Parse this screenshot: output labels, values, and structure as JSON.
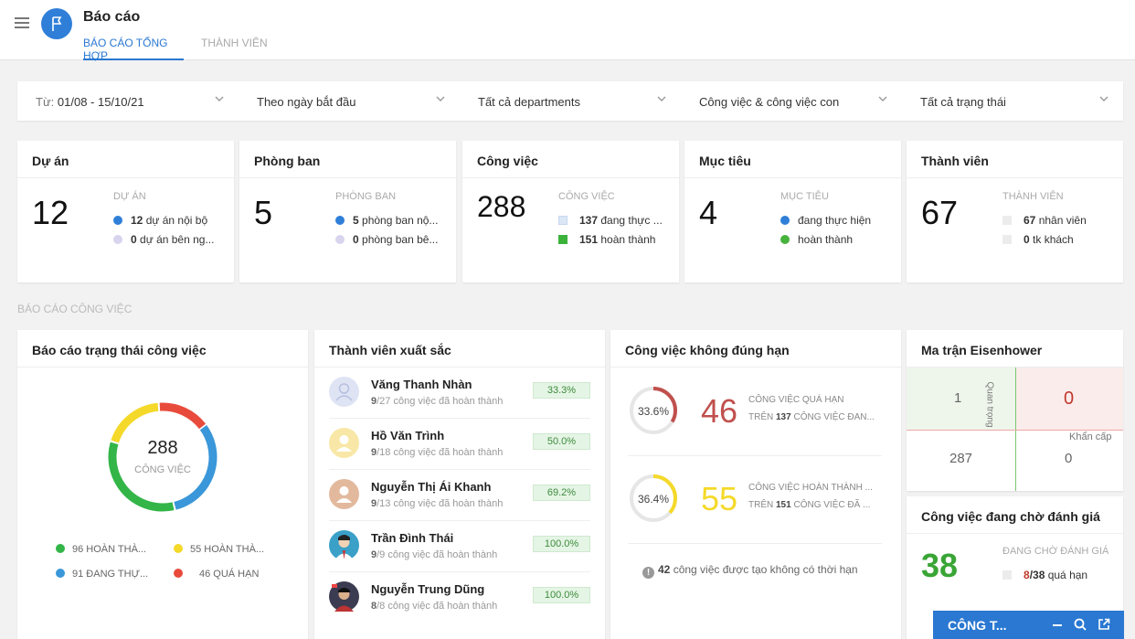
{
  "header": {
    "title": "Báo cáo",
    "tabs": [
      {
        "label": "BÁO CÁO TỔNG HỢP"
      },
      {
        "label": "THÀNH VIÊN"
      }
    ]
  },
  "filters": {
    "date_label": "Từ:",
    "date_value": "01/08 - 15/10/21",
    "date_mode": "Theo ngày bắt đầu",
    "departments": "Tất cả departments",
    "task_scope": "Công việc & công việc con",
    "status": "Tất cả trạng thái"
  },
  "stats": {
    "projects": {
      "title": "Dự án",
      "value": "12",
      "caption": "DỰ ÁN",
      "l1_n": "12",
      "l1_t": " dự án nội bộ",
      "l2_n": "0",
      "l2_t": " dự án bên ng..."
    },
    "departments": {
      "title": "Phòng ban",
      "value": "5",
      "caption": "PHÒNG BAN",
      "l1_n": "5",
      "l1_t": " phòng ban nộ...",
      "l2_n": "0",
      "l2_t": " phòng ban bê..."
    },
    "tasks": {
      "title": "Công việc",
      "value": "288",
      "caption": "CÔNG VIỆC",
      "l1_n": "137",
      "l1_t": " đang thực ...",
      "l2_n": "151",
      "l2_t": " hoàn thành"
    },
    "goals": {
      "title": "Mục tiêu",
      "value": "4",
      "caption": "MỤC TIÊU",
      "l1_t": "đang thực hiện",
      "l2_t": "hoàn thành"
    },
    "members": {
      "title": "Thành viên",
      "value": "67",
      "caption": "THÀNH VIÊN",
      "l1_n": "67",
      "l1_t": " nhân viên",
      "l2_n": "0",
      "l2_t": " tk khách"
    }
  },
  "section_label": "BÁO CÁO CÔNG VIỆC",
  "status_report": {
    "title": "Báo cáo trạng thái công việc",
    "total": "288",
    "total_label": "CÔNG VIỆC",
    "segments": [
      {
        "value": 91,
        "color": "#3a97d9"
      },
      {
        "value": 96,
        "color": "#33b548"
      },
      {
        "value": 55,
        "color": "#f5d92a"
      },
      {
        "value": 46,
        "color": "#e84b3c"
      }
    ],
    "legend": [
      "96 HOÀN THÀ...",
      "55 HOÀN THÀ...",
      "91 ĐANG THỰ...",
      "46 QUÁ HẠN"
    ]
  },
  "top_members": {
    "title": "Thành viên xuất sắc",
    "items": [
      {
        "name": "Văng Thanh Nhàn",
        "done": "9",
        "rest": "/27 công việc đã hoàn thành",
        "pct": "33.3%"
      },
      {
        "name": "Hồ Văn Trình",
        "done": "9",
        "rest": "/18 công việc đã hoàn thành",
        "pct": "50.0%"
      },
      {
        "name": "Nguyễn Thị Ái Khanh",
        "done": "9",
        "rest": "/13 công việc đã hoàn thành",
        "pct": "69.2%"
      },
      {
        "name": "Trần Đình Thái",
        "done": "9",
        "rest": "/9 công việc đã hoàn thành",
        "pct": "100.0%"
      },
      {
        "name": "Nguyễn Trung Dũng",
        "done": "8",
        "rest": "/8 công việc đã hoàn thành",
        "pct": "100.0%"
      }
    ]
  },
  "overdue": {
    "title": "Công việc không đúng hạn",
    "late": {
      "pct": "33.6%",
      "value": "46",
      "t1": "CÔNG VIỆC QUÁ HẠN",
      "t2a": "TRÊN ",
      "t2n": "137",
      "t2b": " CÔNG VIỆC ĐAN...",
      "fraction": 0.336,
      "color": "#c0504d"
    },
    "late_done": {
      "pct": "36.4%",
      "value": "55",
      "t1": "CÔNG VIỆC HOÀN THÀNH ...",
      "t2a": "TRÊN ",
      "t2n": "151",
      "t2b": " CÔNG VIỆC ĐÃ ...",
      "fraction": 0.364,
      "color": "#f5d92a"
    },
    "no_deadline_n": "42",
    "no_deadline_t": " công việc được tạo không có thời hạn"
  },
  "eisenhower": {
    "title": "Ma trận Eisenhower",
    "q1": "1",
    "q2": "0",
    "q3": "287",
    "q4": "0",
    "label_important": "Quan trọng",
    "label_urgent": "Khẩn cấp"
  },
  "pending": {
    "title": "Công việc đang chờ đánh giá",
    "value": "38",
    "caption": "ĐANG CHỜ ĐÁNH GIÁ",
    "late_n": "8",
    "late_total": "/38",
    "late_t": " quá hạn"
  },
  "chat": {
    "label": "CÔNG T..."
  }
}
